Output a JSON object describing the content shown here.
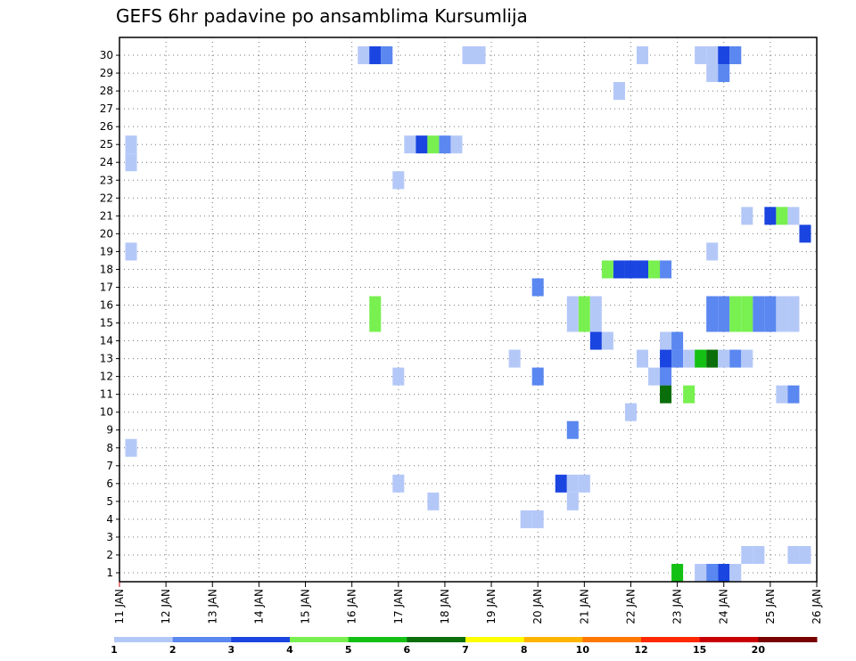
{
  "chart_data": {
    "type": "heatmap",
    "title": "GEFS 6hr padavine po ansamblima Kursumlija",
    "xlabel": "",
    "ylabel": "",
    "x_tick_labels": [
      "11 JAN",
      "12 JAN",
      "13 JAN",
      "14 JAN",
      "15 JAN",
      "16 JAN",
      "17 JAN",
      "18 JAN",
      "19 JAN",
      "20 JAN",
      "21 JAN",
      "22 JAN",
      "23 JAN",
      "24 JAN",
      "25 JAN",
      "26 JAN"
    ],
    "xlim": [
      0,
      15
    ],
    "ylim": [
      0,
      30
    ],
    "y_ticks": [
      1,
      2,
      3,
      4,
      5,
      6,
      7,
      8,
      9,
      10,
      11,
      12,
      13,
      14,
      15,
      16,
      17,
      18,
      19,
      20,
      21,
      22,
      23,
      24,
      25,
      26,
      27,
      28,
      29,
      30
    ],
    "grid": true,
    "colorbar": {
      "thresholds": [
        "1",
        "2",
        "3",
        "4",
        "5",
        "6",
        "7",
        "8",
        "10",
        "12",
        "15",
        "20"
      ],
      "colors": [
        "#b4c8f8",
        "#5a87f0",
        "#1a45e0",
        "#78f050",
        "#14c014",
        "#0a6e0a",
        "#ffff00",
        "#ffb400",
        "#ff7800",
        "#ff2800",
        "#c80000",
        "#780000"
      ]
    },
    "cells": [
      {
        "member": 30,
        "t": 5.25,
        "level": 1
      },
      {
        "member": 30,
        "t": 5.5,
        "level": 3
      },
      {
        "member": 30,
        "t": 5.75,
        "level": 2
      },
      {
        "member": 30,
        "t": 7.5,
        "level": 1
      },
      {
        "member": 30,
        "t": 7.75,
        "level": 1
      },
      {
        "member": 30,
        "t": 11.25,
        "level": 1
      },
      {
        "member": 30,
        "t": 12.5,
        "level": 1
      },
      {
        "member": 30,
        "t": 12.75,
        "level": 1
      },
      {
        "member": 30,
        "t": 13.0,
        "level": 3
      },
      {
        "member": 30,
        "t": 13.25,
        "level": 2
      },
      {
        "member": 29,
        "t": 12.75,
        "level": 1
      },
      {
        "member": 29,
        "t": 13.0,
        "level": 2
      },
      {
        "member": 28,
        "t": 10.75,
        "level": 1
      },
      {
        "member": 25,
        "t": 0.25,
        "level": 1
      },
      {
        "member": 25,
        "t": 6.25,
        "level": 1
      },
      {
        "member": 25,
        "t": 6.5,
        "level": 3
      },
      {
        "member": 25,
        "t": 6.75,
        "level": 4
      },
      {
        "member": 25,
        "t": 7.0,
        "level": 2
      },
      {
        "member": 25,
        "t": 7.25,
        "level": 1
      },
      {
        "member": 24,
        "t": 0.25,
        "level": 1
      },
      {
        "member": 23,
        "t": 6.0,
        "level": 1
      },
      {
        "member": 21,
        "t": 13.5,
        "level": 1
      },
      {
        "member": 21,
        "t": 14.0,
        "level": 3
      },
      {
        "member": 21,
        "t": 14.25,
        "level": 4
      },
      {
        "member": 21,
        "t": 14.5,
        "level": 1
      },
      {
        "member": 20,
        "t": 14.75,
        "level": 3
      },
      {
        "member": 19,
        "t": 0.25,
        "level": 1
      },
      {
        "member": 19,
        "t": 12.75,
        "level": 1
      },
      {
        "member": 18,
        "t": 10.5,
        "level": 4
      },
      {
        "member": 18,
        "t": 10.75,
        "level": 3
      },
      {
        "member": 18,
        "t": 11.0,
        "level": 3
      },
      {
        "member": 18,
        "t": 11.25,
        "level": 3
      },
      {
        "member": 18,
        "t": 11.5,
        "level": 4
      },
      {
        "member": 18,
        "t": 11.75,
        "level": 2
      },
      {
        "member": 17,
        "t": 9.0,
        "level": 2
      },
      {
        "member": 16,
        "t": 5.5,
        "level": 4
      },
      {
        "member": 16,
        "t": 9.75,
        "level": 1
      },
      {
        "member": 16,
        "t": 10.0,
        "level": 4
      },
      {
        "member": 16,
        "t": 10.25,
        "level": 1
      },
      {
        "member": 16,
        "t": 12.75,
        "level": 2
      },
      {
        "member": 16,
        "t": 13.0,
        "level": 2
      },
      {
        "member": 16,
        "t": 13.25,
        "level": 4
      },
      {
        "member": 16,
        "t": 13.5,
        "level": 4
      },
      {
        "member": 16,
        "t": 13.75,
        "level": 2
      },
      {
        "member": 16,
        "t": 14.0,
        "level": 2
      },
      {
        "member": 16,
        "t": 14.25,
        "level": 1
      },
      {
        "member": 16,
        "t": 14.5,
        "level": 1
      },
      {
        "member": 15,
        "t": 5.5,
        "level": 4
      },
      {
        "member": 15,
        "t": 9.75,
        "level": 1
      },
      {
        "member": 15,
        "t": 10.0,
        "level": 4
      },
      {
        "member": 15,
        "t": 10.25,
        "level": 1
      },
      {
        "member": 15,
        "t": 12.75,
        "level": 2
      },
      {
        "member": 15,
        "t": 13.0,
        "level": 2
      },
      {
        "member": 15,
        "t": 13.25,
        "level": 4
      },
      {
        "member": 15,
        "t": 13.5,
        "level": 4
      },
      {
        "member": 15,
        "t": 13.75,
        "level": 2
      },
      {
        "member": 15,
        "t": 14.0,
        "level": 2
      },
      {
        "member": 15,
        "t": 14.25,
        "level": 1
      },
      {
        "member": 15,
        "t": 14.5,
        "level": 1
      },
      {
        "member": 14,
        "t": 10.25,
        "level": 3
      },
      {
        "member": 14,
        "t": 10.5,
        "level": 1
      },
      {
        "member": 14,
        "t": 11.75,
        "level": 1
      },
      {
        "member": 14,
        "t": 12.0,
        "level": 2
      },
      {
        "member": 13,
        "t": 8.5,
        "level": 1
      },
      {
        "member": 13,
        "t": 11.25,
        "level": 1
      },
      {
        "member": 13,
        "t": 11.75,
        "level": 3
      },
      {
        "member": 13,
        "t": 12.0,
        "level": 2
      },
      {
        "member": 13,
        "t": 12.25,
        "level": 1
      },
      {
        "member": 13,
        "t": 12.5,
        "level": 5
      },
      {
        "member": 13,
        "t": 12.75,
        "level": 6
      },
      {
        "member": 13,
        "t": 13.0,
        "level": 1
      },
      {
        "member": 13,
        "t": 13.25,
        "level": 2
      },
      {
        "member": 13,
        "t": 13.5,
        "level": 1
      },
      {
        "member": 12,
        "t": 6.0,
        "level": 1
      },
      {
        "member": 12,
        "t": 9.0,
        "level": 2
      },
      {
        "member": 12,
        "t": 11.5,
        "level": 1
      },
      {
        "member": 12,
        "t": 11.75,
        "level": 2
      },
      {
        "member": 11,
        "t": 11.75,
        "level": 6
      },
      {
        "member": 11,
        "t": 12.25,
        "level": 4
      },
      {
        "member": 11,
        "t": 14.25,
        "level": 1
      },
      {
        "member": 11,
        "t": 14.5,
        "level": 2
      },
      {
        "member": 10,
        "t": 11.0,
        "level": 1
      },
      {
        "member": 9,
        "t": 9.75,
        "level": 2
      },
      {
        "member": 8,
        "t": 0.25,
        "level": 1
      },
      {
        "member": 6,
        "t": 6.0,
        "level": 1
      },
      {
        "member": 6,
        "t": 9.5,
        "level": 3
      },
      {
        "member": 6,
        "t": 9.75,
        "level": 1
      },
      {
        "member": 6,
        "t": 10.0,
        "level": 1
      },
      {
        "member": 5,
        "t": 6.75,
        "level": 1
      },
      {
        "member": 5,
        "t": 9.75,
        "level": 1
      },
      {
        "member": 4,
        "t": 8.75,
        "level": 1
      },
      {
        "member": 4,
        "t": 9.0,
        "level": 1
      },
      {
        "member": 2,
        "t": 13.5,
        "level": 1
      },
      {
        "member": 2,
        "t": 13.75,
        "level": 1
      },
      {
        "member": 2,
        "t": 14.5,
        "level": 1
      },
      {
        "member": 2,
        "t": 14.75,
        "level": 1
      },
      {
        "member": 1,
        "t": 12.0,
        "level": 5
      },
      {
        "member": 1,
        "t": 12.5,
        "level": 1
      },
      {
        "member": 1,
        "t": 12.75,
        "level": 2
      },
      {
        "member": 1,
        "t": 13.0,
        "level": 3
      },
      {
        "member": 1,
        "t": 13.25,
        "level": 1
      }
    ]
  }
}
